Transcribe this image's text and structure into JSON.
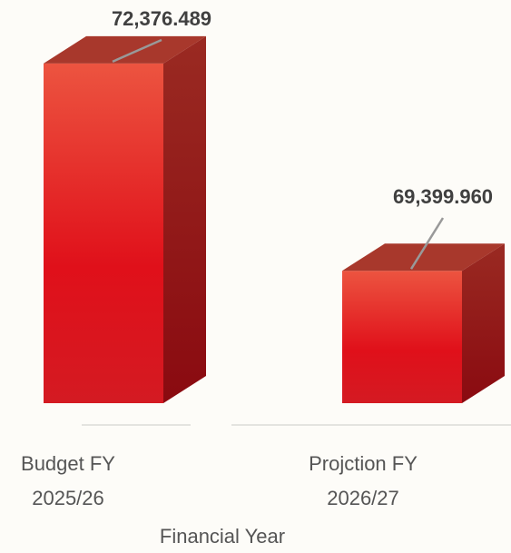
{
  "chart_data": {
    "type": "bar3d",
    "categories": [
      "Budget FY 2025/26",
      "Projction FY 2026/27"
    ],
    "values": [
      72376.489,
      69399.96
    ],
    "value_labels": [
      "72,376.489",
      "69,399.960"
    ],
    "color": "#e2212a",
    "ylim": [
      67500,
      73000
    ],
    "x_label": "Financial Year"
  }
}
